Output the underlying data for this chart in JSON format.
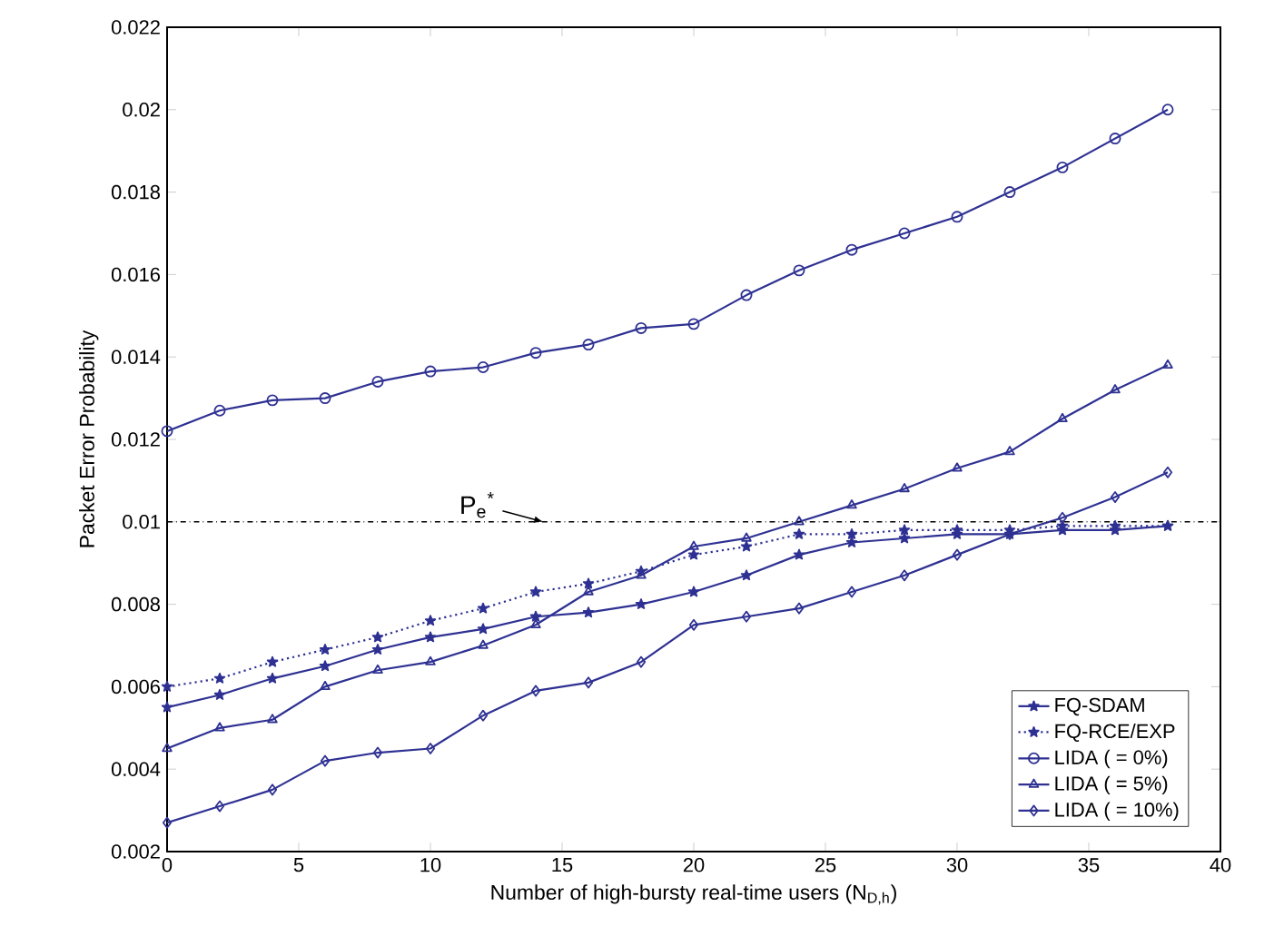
{
  "chart_data": {
    "type": "line",
    "xlabel": "Number of high-bursty real-time users (N$_{D,h}$)",
    "ylabel": "Packet Error Probability",
    "x": [
      0,
      2,
      4,
      6,
      8,
      10,
      12,
      14,
      16,
      18,
      20,
      22,
      24,
      26,
      28,
      30,
      32,
      34,
      36,
      38
    ],
    "series": [
      {
        "name": "FQ-SDAM",
        "color": "#2e3192",
        "marker": "star",
        "line_style": "solid",
        "values": [
          0.0055,
          0.0058,
          0.0062,
          0.0065,
          0.0069,
          0.0072,
          0.0074,
          0.0077,
          0.0078,
          0.008,
          0.0083,
          0.0087,
          0.0092,
          0.0095,
          0.0096,
          0.0097,
          0.0097,
          0.0098,
          0.0098,
          0.0099
        ]
      },
      {
        "name": "FQ-RCE/EXP",
        "color": "#2e3192",
        "marker": "star",
        "line_style": "dotted",
        "values": [
          0.006,
          0.0062,
          0.0066,
          0.0069,
          0.0072,
          0.0076,
          0.0079,
          0.0083,
          0.0085,
          0.0088,
          0.0092,
          0.0094,
          0.0097,
          0.0097,
          0.0098,
          0.0098,
          0.0098,
          0.0099,
          0.0099,
          0.0099
        ]
      },
      {
        "name": "LIDA ( = 0%)",
        "color": "#2e3192",
        "marker": "circle",
        "line_style": "solid",
        "values": [
          0.0122,
          0.0127,
          0.01295,
          0.013,
          0.0134,
          0.01365,
          0.01375,
          0.0141,
          0.0143,
          0.0147,
          0.0148,
          0.0155,
          0.0161,
          0.0166,
          0.017,
          0.0174,
          0.018,
          0.0186,
          0.0193,
          0.02
        ]
      },
      {
        "name": "LIDA ( = 5%)",
        "color": "#2e3192",
        "marker": "triangle",
        "line_style": "solid",
        "values": [
          0.0045,
          0.005,
          0.0052,
          0.006,
          0.0064,
          0.0066,
          0.007,
          0.0075,
          0.0083,
          0.0087,
          0.0094,
          0.0096,
          0.01,
          0.0104,
          0.0108,
          0.0113,
          0.0117,
          0.0125,
          0.0132,
          0.0138
        ]
      },
      {
        "name": "LIDA ( = 10%)",
        "color": "#2e3192",
        "marker": "diamond",
        "line_style": "solid",
        "values": [
          0.0027,
          0.0031,
          0.0035,
          0.0042,
          0.0044,
          0.0045,
          0.0053,
          0.0059,
          0.0061,
          0.0066,
          0.0075,
          0.0077,
          0.0079,
          0.0083,
          0.0087,
          0.0092,
          0.0097,
          0.0101,
          0.0106,
          0.0112
        ]
      }
    ],
    "xlim": [
      0,
      40
    ],
    "xticks": [
      0,
      5,
      10,
      15,
      20,
      25,
      30,
      35,
      40
    ],
    "ylim": [
      0.002,
      0.022
    ],
    "yticks": [
      0.002,
      0.004,
      0.006,
      0.008,
      0.01,
      0.012,
      0.014,
      0.016,
      0.018,
      0.02,
      0.022
    ],
    "ref_lines": [
      {
        "axis": "y",
        "value": 0.01,
        "label": "P$_{e}$$^{*}$",
        "color": "#000000",
        "line_style": "dashdot"
      }
    ],
    "grid": false,
    "legend": "bottom right"
  }
}
